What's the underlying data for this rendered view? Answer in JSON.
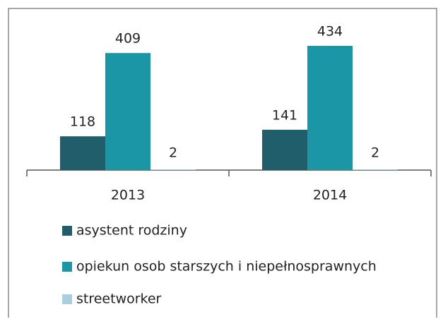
{
  "chart_data": {
    "type": "bar",
    "categories": [
      "2013",
      "2014"
    ],
    "series": [
      {
        "name": "asystent rodziny",
        "color": "#1f5e6a",
        "values": [
          118,
          141
        ]
      },
      {
        "name": "opiekun osob starszych i niepełnosprawnych",
        "color": "#1b96a7",
        "values": [
          409,
          434
        ]
      },
      {
        "name": "streetworker",
        "color": "#a8cfe0",
        "values": [
          2,
          2
        ]
      }
    ],
    "legend": "bottom"
  }
}
